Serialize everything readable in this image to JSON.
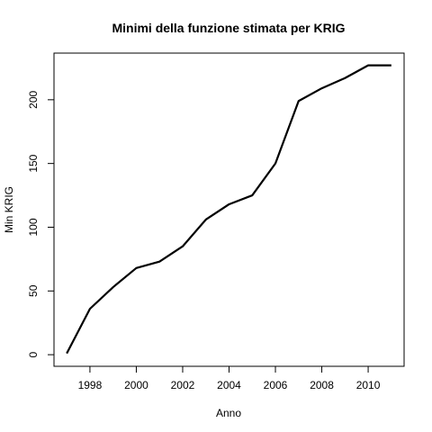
{
  "chart_data": {
    "type": "line",
    "title": "Minimi della funzione stimata per KRIG",
    "xlabel": "Anno",
    "ylabel": "Min KRIG",
    "xlim": [
      1996.45,
      2011.55
    ],
    "ylim": [
      -9.1,
      236.6
    ],
    "x_ticks": [
      1998,
      2000,
      2002,
      2004,
      2006,
      2008,
      2010
    ],
    "y_ticks": [
      0,
      50,
      100,
      150,
      200
    ],
    "grid": false,
    "line_color": "#000000",
    "series": [
      {
        "x": [
          1997,
          1998,
          1999,
          2000,
          2001,
          2002,
          2003,
          2004,
          2005,
          2006,
          2007,
          2008,
          2009,
          2010,
          2011
        ],
        "values": [
          1,
          36,
          53,
          68,
          73,
          85,
          106,
          118,
          125,
          150,
          199,
          209,
          217,
          227,
          227
        ]
      }
    ]
  }
}
